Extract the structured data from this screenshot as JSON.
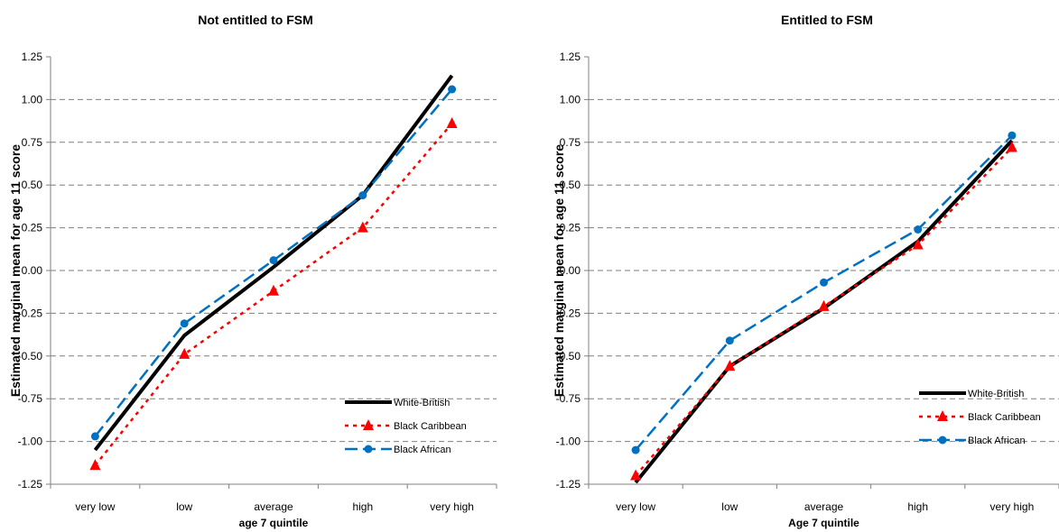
{
  "chart_data": [
    {
      "type": "line",
      "title": "Not entitled to FSM",
      "xlabel": "age 7 quintile",
      "ylabel": "Estimated marginal mean for age 11 score",
      "categories": [
        "very low",
        "low",
        "average",
        "high",
        "very high"
      ],
      "ylim": [
        -1.25,
        1.25
      ],
      "yticks": [
        "1.25",
        "1.00",
        "0.75",
        "0.50",
        "0.25",
        "0.00",
        "-0.25",
        "-0.50",
        "-0.75",
        "-1.00",
        "-1.25"
      ],
      "grid": true,
      "legend_position": "bottom-right",
      "series": [
        {
          "name": "White-British",
          "color": "#000000",
          "style": "solid",
          "marker": "none",
          "values": [
            -1.05,
            -0.38,
            0.02,
            0.44,
            1.14
          ]
        },
        {
          "name": "Black Caribbean",
          "color": "#ff0000",
          "style": "dotted",
          "marker": "triangle",
          "values": [
            -1.14,
            -0.49,
            -0.12,
            0.25,
            0.86
          ]
        },
        {
          "name": "Black African",
          "color": "#0070c0",
          "style": "dashed",
          "marker": "circle",
          "values": [
            -0.97,
            -0.31,
            0.06,
            0.44,
            1.06
          ]
        }
      ]
    },
    {
      "type": "line",
      "title": "Entitled to FSM",
      "xlabel": "Age 7 quintile",
      "ylabel": "Estimated marginal mean for age 11 score",
      "categories": [
        "very low",
        "low",
        "average",
        "high",
        "very high"
      ],
      "ylim": [
        -1.25,
        1.25
      ],
      "yticks": [
        "1.25",
        "1.00",
        "0.75",
        "0.50",
        "0.25",
        "0.00",
        "-0.25",
        "-0.50",
        "-0.75",
        "-1.00",
        "-1.25"
      ],
      "grid": true,
      "legend_position": "bottom-right",
      "series": [
        {
          "name": "White-British",
          "color": "#000000",
          "style": "solid",
          "marker": "none",
          "values": [
            -1.24,
            -0.56,
            -0.22,
            0.17,
            0.76
          ]
        },
        {
          "name": "Black Caribbean",
          "color": "#ff0000",
          "style": "dotted",
          "marker": "triangle",
          "values": [
            -1.2,
            -0.56,
            -0.21,
            0.15,
            0.72
          ]
        },
        {
          "name": "Black African",
          "color": "#0070c0",
          "style": "dashed",
          "marker": "circle",
          "values": [
            -1.05,
            -0.41,
            -0.07,
            0.24,
            0.79
          ]
        }
      ]
    }
  ]
}
